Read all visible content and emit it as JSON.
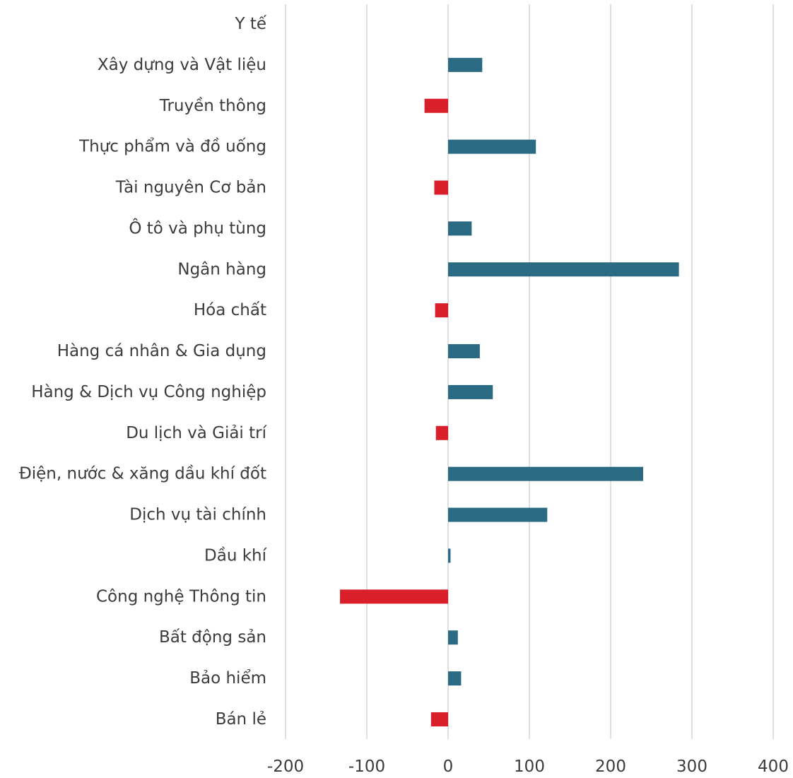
{
  "chart_data": {
    "type": "bar",
    "orientation": "horizontal",
    "title": "",
    "xlabel": "",
    "ylabel": "",
    "grid": "vertical",
    "legend": "none",
    "categories": [
      "Y tế",
      "Xây dựng và Vật liệu",
      "Truyền thông",
      "Thực phẩm và đồ uống",
      "Tài nguyên Cơ bản",
      "Ô tô và phụ tùng",
      "Ngân hàng",
      "Hóa chất",
      "Hàng cá nhân & Gia dụng",
      "Hàng & Dịch vụ Công nghiệp",
      "Du lịch và Giải trí",
      "Điện, nước & xăng dầu khí đốt",
      "Dịch vụ tài chính",
      "Dầu khí",
      "Công nghệ Thông tin",
      "Bất động sản",
      "Bảo hiểm",
      "Bán lẻ"
    ],
    "values": [
      0,
      42,
      -29,
      108,
      -17,
      29,
      284,
      -16,
      39,
      55,
      -15,
      240,
      122,
      3,
      -133,
      12,
      16,
      -21
    ],
    "xlim": [
      -200,
      400
    ],
    "xticks": [
      -200,
      -100,
      0,
      100,
      200,
      300,
      400
    ],
    "colors": {
      "positive": "#2a6a82",
      "negative": "#d9202a"
    }
  }
}
